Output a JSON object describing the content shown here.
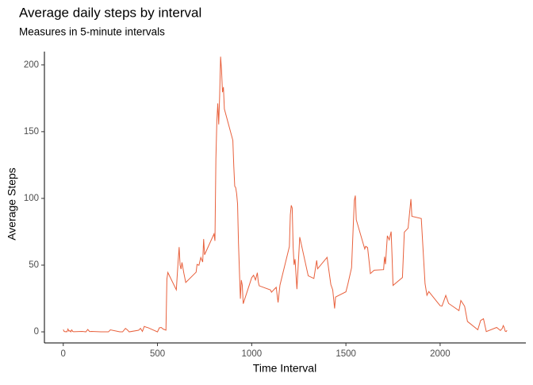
{
  "chart_data": {
    "type": "line",
    "title": "Average daily steps by interval",
    "subtitle": "Measures in 5-minute intervals",
    "x_label": "Time Interval",
    "y_label": "Average Steps",
    "x": [
      0,
      5,
      10,
      15,
      20,
      25,
      30,
      35,
      40,
      45,
      50,
      55,
      100,
      110,
      120,
      130,
      140,
      150,
      200,
      215,
      230,
      240,
      250,
      300,
      315,
      330,
      340,
      350,
      400,
      410,
      420,
      430,
      440,
      450,
      500,
      510,
      520,
      530,
      545,
      550,
      555,
      600,
      610,
      615,
      620,
      625,
      630,
      640,
      650,
      700,
      705,
      710,
      720,
      730,
      740,
      745,
      750,
      800,
      805,
      810,
      815,
      820,
      825,
      830,
      835,
      840,
      845,
      850,
      855,
      900,
      905,
      910,
      915,
      920,
      925,
      930,
      935,
      940,
      945,
      950,
      955,
      1000,
      1010,
      1020,
      1030,
      1035,
      1040,
      1100,
      1105,
      1130,
      1140,
      1150,
      1200,
      1205,
      1210,
      1215,
      1220,
      1225,
      1230,
      1240,
      1255,
      1300,
      1330,
      1345,
      1350,
      1400,
      1420,
      1430,
      1440,
      1445,
      1500,
      1510,
      1530,
      1540,
      1545,
      1550,
      1555,
      1600,
      1605,
      1615,
      1620,
      1630,
      1650,
      1700,
      1705,
      1710,
      1720,
      1730,
      1740,
      1745,
      1750,
      1800,
      1810,
      1830,
      1845,
      1850,
      1900,
      1920,
      1930,
      1940,
      2000,
      2010,
      2030,
      2045,
      2100,
      2110,
      2130,
      2145,
      2200,
      2215,
      2230,
      2245,
      2300,
      2320,
      2330,
      2335,
      2340,
      2345,
      2350,
      2355
    ],
    "series": [
      {
        "name": "Average Steps",
        "color": "#e8603c",
        "values": [
          1.7,
          0.3,
          0.1,
          0.2,
          0.1,
          2.1,
          0.5,
          0.9,
          0,
          1.5,
          0.3,
          0.1,
          0.3,
          0.2,
          0,
          1.8,
          0.2,
          0.3,
          0,
          0,
          0,
          0,
          1.5,
          0,
          0,
          2.6,
          1.5,
          0,
          1.2,
          2.6,
          0.3,
          4.1,
          3.5,
          3.1,
          0,
          3,
          3.3,
          2.1,
          1.3,
          39.5,
          44.5,
          31.5,
          53.8,
          63.5,
          50,
          47,
          52,
          44,
          37,
          44,
          44.7,
          50.5,
          49.9,
          55.7,
          52.3,
          69.5,
          57.8,
          73.4,
          68.2,
          129.4,
          157.5,
          171.2,
          155.4,
          177.3,
          206.2,
          195.9,
          179.6,
          183.4,
          167,
          143.5,
          124,
          109.1,
          108.1,
          103.7,
          96,
          66.2,
          45.2,
          24.8,
          38.8,
          35,
          21.1,
          40.6,
          42.4,
          38.9,
          44.3,
          37.4,
          34.5,
          31.4,
          29.7,
          33.4,
          22,
          35,
          63.9,
          87.7,
          94.8,
          92.8,
          63.4,
          50.2,
          54.5,
          32,
          71,
          42,
          40,
          53.5,
          47.3,
          55.8,
          35.5,
          31.5,
          17.5,
          26.1,
          30,
          35.5,
          48,
          82.9,
          98.7,
          102.1,
          84,
          62.1,
          64.1,
          63.2,
          56.9,
          43.7,
          46.2,
          46.6,
          56.3,
          50.7,
          72,
          68.9,
          75.1,
          56.5,
          34.8,
          40.7,
          74.7,
          77.7,
          99.5,
          86.6,
          84.9,
          36.1,
          27.4,
          30.2,
          19.6,
          19.3,
          27.3,
          21.3,
          15.9,
          23.5,
          19.2,
          7.8,
          1.6,
          8.5,
          9.8,
          0.2,
          3.3,
          1,
          2.6,
          4.7,
          3.3,
          0.6,
          0.2,
          1.1
        ]
      }
    ],
    "xlim": [
      -100,
      2455
    ],
    "ylim": [
      -8.3,
      210
    ],
    "xticks": [
      0,
      500,
      1000,
      1500,
      2000
    ],
    "yticks": [
      0,
      50,
      100,
      150,
      200
    ],
    "grid": false
  }
}
